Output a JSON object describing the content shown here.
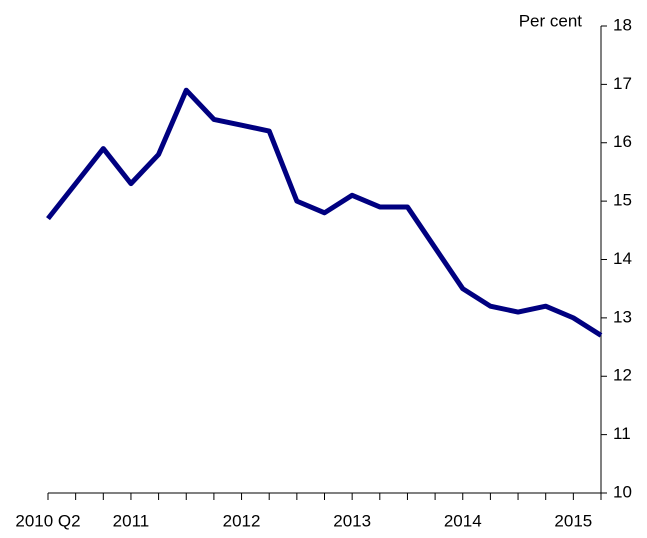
{
  "chart_data": {
    "type": "line",
    "y_label": "Per cent",
    "categories": [
      "2010 Q2",
      null,
      null,
      "2011",
      null,
      null,
      null,
      "2012",
      null,
      null,
      null,
      "2013",
      null,
      null,
      null,
      "2014",
      null,
      null,
      null,
      "2015",
      null
    ],
    "series": [
      {
        "name": null,
        "color": "#000080",
        "values": [
          14.7,
          15.3,
          15.9,
          15.3,
          15.8,
          16.9,
          16.4,
          16.3,
          16.2,
          15.0,
          14.8,
          15.1,
          14.9,
          14.9,
          14.2,
          13.5,
          13.2,
          13.1,
          13.2,
          13.0,
          12.7
        ]
      }
    ],
    "ylim": [
      10,
      18
    ],
    "yticks": [
      10,
      11,
      12,
      13,
      14,
      15,
      16,
      17,
      18
    ],
    "axis_side": "right"
  }
}
